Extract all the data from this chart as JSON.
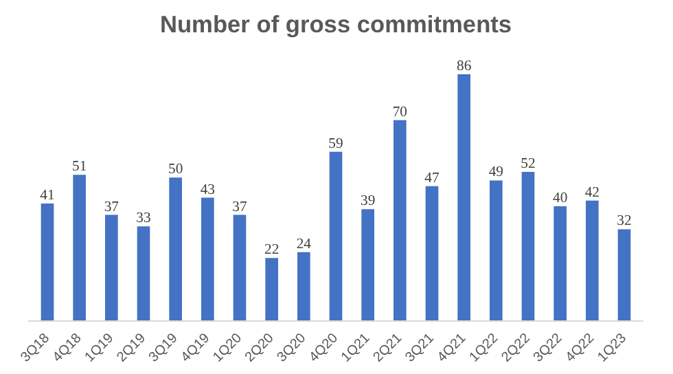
{
  "chart_data": {
    "type": "bar",
    "title": "Number of gross commitments",
    "categories": [
      "3Q18",
      "4Q18",
      "1Q19",
      "2Q19",
      "3Q19",
      "4Q19",
      "1Q20",
      "2Q20",
      "3Q20",
      "4Q20",
      "1Q21",
      "2Q21",
      "3Q21",
      "4Q21",
      "1Q22",
      "2Q22",
      "3Q22",
      "4Q22",
      "1Q23"
    ],
    "values": [
      41,
      51,
      37,
      33,
      50,
      43,
      37,
      22,
      24,
      59,
      39,
      70,
      47,
      86,
      49,
      52,
      40,
      42,
      32
    ],
    "color": "#4472c4",
    "data_labels": true,
    "tick_labels": "x"
  }
}
